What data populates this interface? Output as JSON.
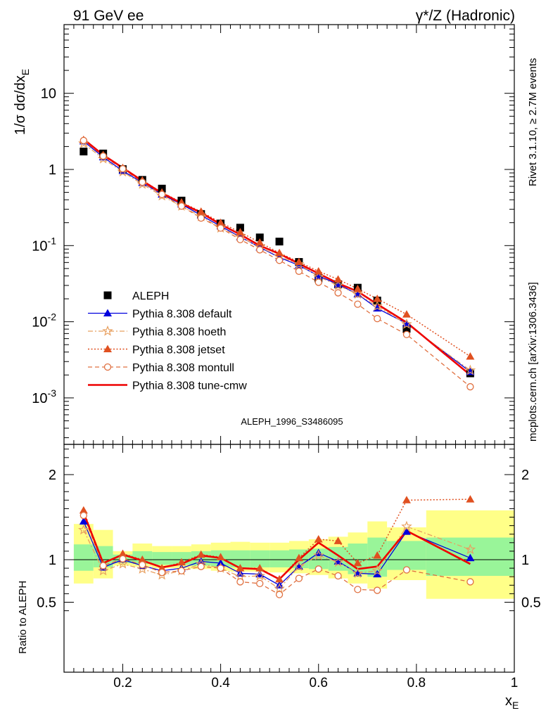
{
  "header": {
    "left": "91 GeV ee",
    "right": "γ*/Z (Hadronic)"
  },
  "side": {
    "rivet": "Rivet 3.1.10, ≥ 2.7M events",
    "mcplots": "mcplots.cern.ch [arXiv:1306.3436]"
  },
  "watermark": "ALEPH_1996_S3486095",
  "chart_data": [
    {
      "type": "line",
      "ylabel": "1/σ dσ/dx_E",
      "yscale": "log",
      "xlim": [
        0.08,
        1.0
      ],
      "ylim": [
        0.00025,
        100
      ],
      "ytick_labels": [
        "10",
        "1",
        "10^-1",
        "10^-2",
        "10^-3"
      ],
      "legend_position": "lower-left",
      "x": [
        0.12,
        0.16,
        0.2,
        0.24,
        0.28,
        0.32,
        0.36,
        0.4,
        0.44,
        0.48,
        0.52,
        0.56,
        0.6,
        0.64,
        0.68,
        0.72,
        0.78,
        0.91
      ],
      "series": [
        {
          "name": "ALEPH",
          "style": "marker-square",
          "color": "#000000",
          "values": [
            1.72,
            1.62,
            1.01,
            0.73,
            0.56,
            0.39,
            0.26,
            0.195,
            0.172,
            0.128,
            0.113,
            0.061,
            0.037,
            0.031,
            0.028,
            0.019,
            0.0081,
            0.0021
          ]
        },
        {
          "name": "Pythia 8.308 default",
          "style": "solid-triangle",
          "color": "#0000dd",
          "values": [
            2.35,
            1.45,
            0.96,
            0.67,
            0.47,
            0.35,
            0.25,
            0.18,
            0.13,
            0.095,
            0.07,
            0.055,
            0.04,
            0.031,
            0.023,
            0.015,
            0.0095,
            0.0022
          ]
        },
        {
          "name": "Pythia 8.308 hoeth",
          "style": "dashdot-star",
          "color": "#e8a060",
          "values": [
            2.2,
            1.38,
            0.93,
            0.64,
            0.45,
            0.33,
            0.24,
            0.17,
            0.13,
            0.096,
            0.072,
            0.057,
            0.039,
            0.03,
            0.023,
            0.016,
            0.0093,
            0.0023
          ]
        },
        {
          "name": "Pythia 8.308 jetset",
          "style": "dotted-triangle",
          "color": "#e05020",
          "values": [
            2.45,
            1.55,
            1.05,
            0.72,
            0.5,
            0.37,
            0.28,
            0.2,
            0.15,
            0.11,
            0.08,
            0.061,
            0.046,
            0.036,
            0.027,
            0.02,
            0.0125,
            0.0035
          ]
        },
        {
          "name": "Pythia 8.308 montull",
          "style": "dashed-circle",
          "color": "#e07040",
          "values": [
            2.4,
            1.5,
            1.02,
            0.68,
            0.47,
            0.33,
            0.23,
            0.17,
            0.12,
            0.088,
            0.064,
            0.046,
            0.033,
            0.024,
            0.017,
            0.011,
            0.0068,
            0.0014
          ]
        },
        {
          "name": "Pythia 8.308 tune-cmw",
          "style": "solid-thick",
          "color": "#ee0000",
          "values": [
            2.5,
            1.55,
            1.05,
            0.71,
            0.49,
            0.36,
            0.27,
            0.19,
            0.14,
            0.1,
            0.078,
            0.058,
            0.043,
            0.032,
            0.025,
            0.017,
            0.0098,
            0.002
          ]
        }
      ]
    },
    {
      "type": "line",
      "xlabel": "x_E",
      "ylabel": "Ratio to ALEPH",
      "xlim": [
        0.08,
        1.0
      ],
      "ylim": [
        0.35,
        2.35
      ],
      "xticks": [
        0.2,
        0.4,
        0.6,
        0.8,
        1
      ],
      "xtick_labels": [
        "0.2",
        "0.4",
        "0.6",
        "0.8",
        "1"
      ],
      "yticks": [
        0.5,
        1,
        2
      ],
      "ytick_labels": [
        "0.5",
        "1",
        "2"
      ],
      "x": [
        0.12,
        0.16,
        0.2,
        0.24,
        0.28,
        0.32,
        0.36,
        0.4,
        0.44,
        0.48,
        0.52,
        0.56,
        0.6,
        0.64,
        0.68,
        0.72,
        0.78,
        0.91
      ],
      "bands": {
        "edges": [
          0.1,
          0.14,
          0.18,
          0.22,
          0.26,
          0.3,
          0.34,
          0.38,
          0.42,
          0.46,
          0.5,
          0.54,
          0.58,
          0.62,
          0.66,
          0.7,
          0.74,
          0.82,
          1.0
        ],
        "outer_low": [
          0.72,
          0.78,
          0.93,
          0.92,
          0.9,
          0.9,
          0.89,
          0.87,
          0.86,
          0.86,
          0.85,
          0.84,
          0.82,
          0.78,
          0.72,
          0.66,
          0.76,
          0.54
        ],
        "outer_high": [
          1.42,
          1.35,
          1.1,
          1.19,
          1.16,
          1.16,
          1.18,
          1.2,
          1.21,
          1.2,
          1.2,
          1.22,
          1.24,
          1.27,
          1.32,
          1.45,
          1.38,
          1.58
        ],
        "inner_low": [
          0.87,
          0.91,
          0.96,
          0.95,
          0.94,
          0.94,
          0.93,
          0.92,
          0.91,
          0.91,
          0.91,
          0.9,
          0.89,
          0.87,
          0.83,
          0.8,
          0.88,
          0.81
        ],
        "inner_high": [
          1.18,
          1.16,
          1.06,
          1.1,
          1.09,
          1.09,
          1.1,
          1.11,
          1.11,
          1.11,
          1.11,
          1.12,
          1.13,
          1.15,
          1.19,
          1.26,
          1.22,
          1.26
        ],
        "outer_color": "#ffff88",
        "inner_color": "#99f599"
      },
      "series": [
        {
          "name": "Pythia 8.308 default",
          "style": "solid-triangle",
          "color": "#0000dd",
          "values": [
            1.45,
            0.91,
            1.0,
            0.93,
            0.87,
            0.9,
            0.98,
            0.96,
            0.84,
            0.83,
            0.7,
            0.92,
            1.08,
            0.98,
            0.84,
            0.83,
            1.33,
            1.02
          ]
        },
        {
          "name": "Pythia 8.308 hoeth",
          "style": "dashdot-star",
          "color": "#e8a060",
          "values": [
            1.35,
            0.87,
            0.95,
            0.89,
            0.82,
            0.87,
            0.95,
            0.9,
            0.8,
            0.81,
            0.66,
            0.92,
            1.05,
            0.97,
            0.84,
            0.87,
            1.39,
            1.12
          ]
        },
        {
          "name": "Pythia 8.308 jetset",
          "style": "dotted-triangle",
          "color": "#e05020",
          "values": [
            1.58,
            0.95,
            1.07,
            1.0,
            0.9,
            0.97,
            1.06,
            1.03,
            0.9,
            0.9,
            0.77,
            1.02,
            1.24,
            1.22,
            0.96,
            1.05,
            1.7,
            1.71
          ]
        },
        {
          "name": "Pythia 8.308 montull",
          "style": "dashed-circle",
          "color": "#e07040",
          "values": [
            1.52,
            0.93,
            1.01,
            0.94,
            0.85,
            0.87,
            0.92,
            0.9,
            0.74,
            0.72,
            0.59,
            0.78,
            0.89,
            0.81,
            0.65,
            0.64,
            0.88,
            0.74
          ]
        },
        {
          "name": "Pythia 8.308 tune-cmw",
          "style": "solid-thick",
          "color": "#ee0000",
          "values": [
            1.55,
            0.96,
            1.06,
            0.99,
            0.91,
            0.95,
            1.05,
            1.02,
            0.9,
            0.89,
            0.77,
            1.0,
            1.2,
            1.05,
            0.89,
            0.92,
            1.34,
            0.95
          ]
        }
      ]
    }
  ]
}
